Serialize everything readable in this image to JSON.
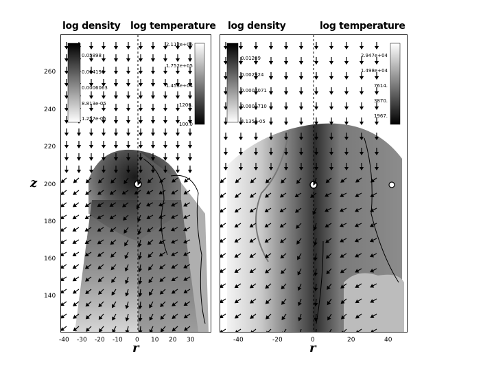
{
  "headers": {
    "left_density": "log density",
    "left_temperature": "log temperature",
    "right_density": "log density",
    "right_temperature": "log temperature"
  },
  "axes": {
    "x_label": "r",
    "y_label": "z",
    "y_ticks": [
      "260",
      "240",
      "220",
      "200",
      "180",
      "160",
      "140"
    ],
    "left_x_ticks": [
      "-40",
      "-30",
      "-20",
      "-10",
      "0",
      "10",
      "20",
      "30"
    ],
    "right_x_ticks": [
      "-40",
      "-20",
      "0",
      "20",
      "40"
    ]
  },
  "left_colorbars": {
    "density": [
      "0.05898",
      "0.004198",
      "0.0006063",
      "8.813e-05",
      "1.257e-05"
    ],
    "temperature": [
      "2.112e+06",
      "1.752e+05",
      "1.453e+04",
      "1206.",
      "100.0"
    ]
  },
  "right_colorbars": {
    "density": [
      "0.01209",
      "0.002924",
      "0.0007071",
      "0.0001710",
      "4.135e-05"
    ],
    "temperature": [
      "2.947e+04",
      "1.498e+04",
      "7614.",
      "3870.",
      "1967."
    ]
  }
}
